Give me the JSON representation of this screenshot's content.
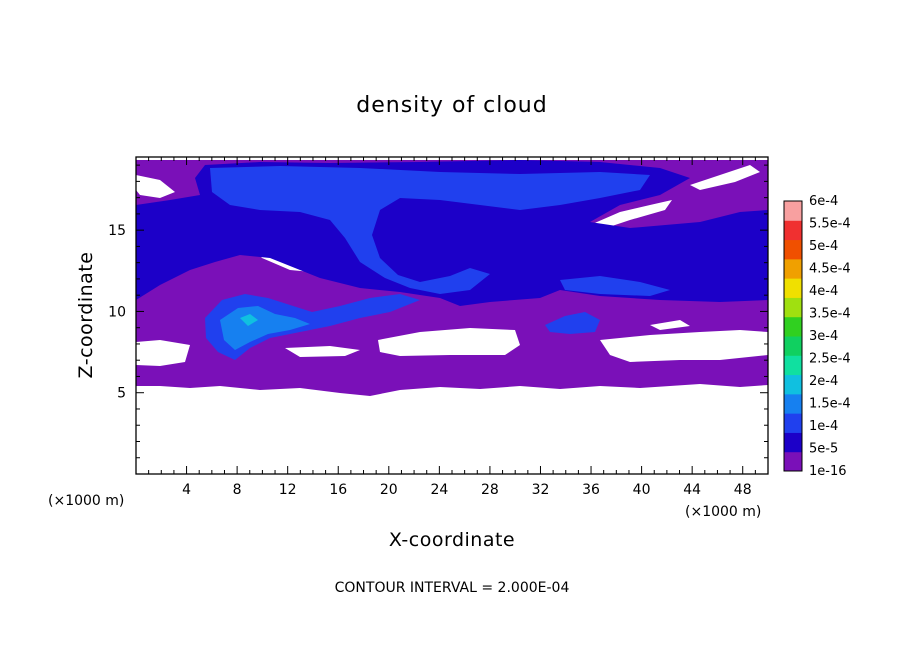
{
  "chart_data": {
    "type": "heatmap",
    "title": "density of cloud",
    "xlabel": "X-coordinate",
    "ylabel": "Z-coordinate",
    "x_unit": "(×1000 m)",
    "x_unit_right": "(×1000 m)",
    "xlim": [
      0,
      50
    ],
    "ylim": [
      0,
      19.5
    ],
    "x_ticks": [
      4,
      8,
      12,
      16,
      20,
      24,
      28,
      32,
      36,
      40,
      44,
      48
    ],
    "y_ticks": [
      5,
      10,
      15
    ],
    "colorbar": {
      "levels": [
        "1e-16",
        "5e-5",
        "1e-4",
        "1.5e-4",
        "2e-4",
        "2.5e-4",
        "3e-4",
        "3.5e-4",
        "4e-4",
        "4.5e-4",
        "5e-4",
        "5.5e-4",
        "6e-4"
      ],
      "colors": [
        "#7a10b8",
        "#1c00c8",
        "#2040ee",
        "#1680f0",
        "#10c0e0",
        "#10e0a0",
        "#10d060",
        "#30d020",
        "#a0e010",
        "#f0e000",
        "#f0a000",
        "#f05000",
        "#f03030",
        "#f8a0a0"
      ]
    },
    "regions": [
      {
        "level": 0,
        "label": "1e-16",
        "desc": "cloud layer 5.5-19.5 km"
      },
      {
        "level": 1,
        "label": "5e-5",
        "desc": "upper cloud 11-19 km"
      },
      {
        "level": 2,
        "label": "1e-4",
        "desc": "cores near x 16-24 km and x 4-12 km, z 7.5-11 km"
      },
      {
        "level": 3,
        "label": "1.5e-4",
        "desc": "small cores near x 6-12 km, z 8-10 km"
      }
    ],
    "contour_interval": "CONTOUR INTERVAL = 2.000E-04"
  }
}
